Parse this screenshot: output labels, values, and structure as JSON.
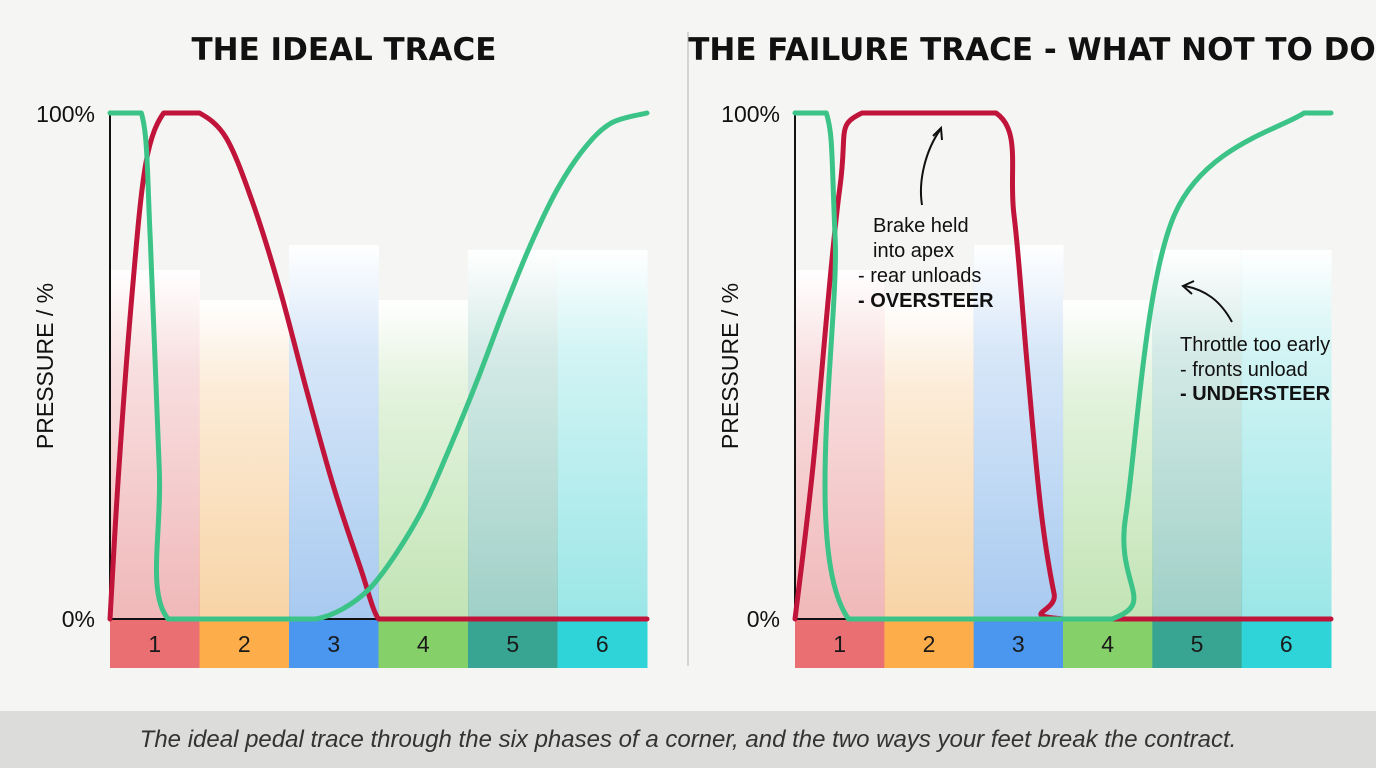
{
  "chart_data": [
    {
      "type": "line",
      "title": "THE IDEAL TRACE",
      "ylabel": "PRESSURE / %",
      "yticks": [
        "100%",
        "0%"
      ],
      "ylim": [
        0,
        100
      ],
      "xlim": [
        0,
        6
      ],
      "phases": [
        "1",
        "2",
        "3",
        "4",
        "5",
        "6"
      ],
      "phase_colors": [
        "#ea6f73",
        "#fdad4a",
        "#4b96ee",
        "#86d06a",
        "#38a592",
        "#2fd4d9"
      ],
      "series": [
        {
          "color": "#c0143a",
          "x": [
            0,
            0.1,
            0.25,
            0.4,
            0.6,
            0.8,
            1.0,
            1.3,
            1.6,
            1.9,
            2.2,
            2.5,
            2.8,
            3.0,
            3.2,
            3.5,
            6.0
          ],
          "y": [
            0,
            30,
            65,
            90,
            100,
            100,
            100,
            95,
            82,
            65,
            45,
            26,
            10,
            0,
            0,
            0,
            0
          ]
        },
        {
          "color": "#3cc388",
          "x": [
            0,
            0.35,
            0.45,
            0.55,
            0.65,
            2.0,
            2.3,
            2.6,
            2.9,
            3.2,
            3.5,
            3.8,
            4.1,
            4.4,
            4.7,
            5.0,
            5.3,
            5.6,
            6.0
          ],
          "y": [
            100,
            100,
            75,
            30,
            0,
            0,
            0,
            2,
            6,
            13,
            22,
            34,
            47,
            61,
            74,
            85,
            93,
            98,
            100
          ]
        }
      ],
      "annotations": []
    },
    {
      "type": "line",
      "title": "THE FAILURE TRACE - WHAT NOT TO DO",
      "ylabel": "PRESSURE / %",
      "yticks": [
        "100%",
        "0%"
      ],
      "ylim": [
        0,
        100
      ],
      "xlim": [
        0,
        6
      ],
      "phases": [
        "1",
        "2",
        "3",
        "4",
        "5",
        "6"
      ],
      "phase_colors": [
        "#ea6f73",
        "#fdad4a",
        "#4b96ee",
        "#86d06a",
        "#38a592",
        "#2fd4d9"
      ],
      "series": [
        {
          "color": "#c0143a",
          "x": [
            0,
            0.2,
            0.5,
            0.75,
            2.25,
            2.45,
            2.6,
            2.75,
            2.9,
            3.0,
            6.0
          ],
          "y": [
            0,
            30,
            85,
            100,
            100,
            80,
            50,
            22,
            5,
            0,
            0
          ]
        },
        {
          "color": "#3cc388",
          "x": [
            0,
            0.35,
            0.45,
            0.6,
            3.55,
            3.7,
            4.25,
            5.7,
            6.0
          ],
          "y": [
            100,
            100,
            75,
            0,
            0,
            20,
            80,
            100,
            100
          ]
        }
      ],
      "annotations": [
        {
          "lines": [
            "Brake held",
            "into apex",
            "- rear unloads"
          ],
          "bold": "- OVERSTEER"
        },
        {
          "lines": [
            "Throttle too early",
            "- fronts unload"
          ],
          "bold": "- UNDERSTEER"
        }
      ]
    }
  ],
  "caption": "The ideal pedal trace through the six phases of a corner, and the two ways your feet break the contract."
}
